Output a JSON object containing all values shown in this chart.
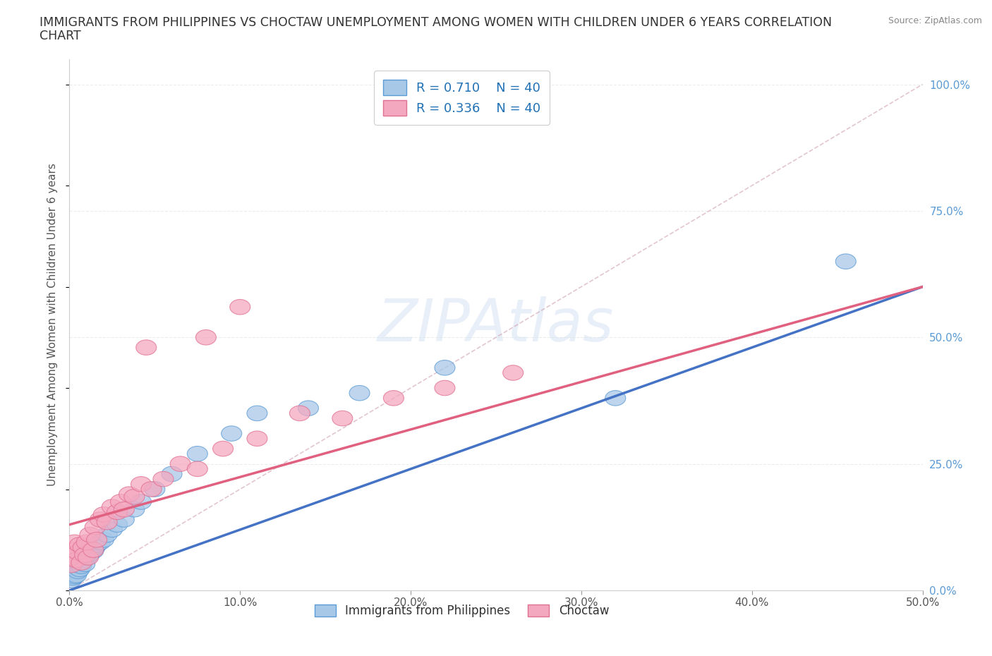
{
  "title_line1": "IMMIGRANTS FROM PHILIPPINES VS CHOCTAW UNEMPLOYMENT AMONG WOMEN WITH CHILDREN UNDER 6 YEARS CORRELATION",
  "title_line2": "CHART",
  "source": "Source: ZipAtlas.com",
  "ylabel": "Unemployment Among Women with Children Under 6 years",
  "xlim": [
    0.0,
    0.5
  ],
  "ylim": [
    0.0,
    1.05
  ],
  "xticks": [
    0.0,
    0.1,
    0.2,
    0.3,
    0.4,
    0.5
  ],
  "xticklabels": [
    "0.0%",
    "10.0%",
    "20.0%",
    "30.0%",
    "40.0%",
    "50.0%"
  ],
  "yticks_right": [
    0.0,
    0.25,
    0.5,
    0.75,
    1.0
  ],
  "yticklabels_right": [
    "0.0%",
    "25.0%",
    "50.0%",
    "75.0%",
    "100.0%"
  ],
  "watermark": "ZIPAtlas",
  "color_blue_fill": "#a8c8e8",
  "color_blue_edge": "#5b9bd5",
  "color_pink_fill": "#f4a8c0",
  "color_pink_edge": "#e07090",
  "color_blue_line": "#4472c4",
  "color_pink_line": "#e06080",
  "color_dash_line": "#d0a0b0",
  "background_color": "#ffffff",
  "grid_color": "#e8e8e8",
  "phil_line_x0": 0.0,
  "phil_line_y0": 0.0,
  "phil_line_x1": 0.5,
  "phil_line_y1": 0.6,
  "choc_line_x0": 0.0,
  "choc_line_y0": 0.13,
  "choc_line_x1": 0.5,
  "choc_line_y1": 0.6,
  "dash_line_x0": 0.0,
  "dash_line_y0": 0.0,
  "dash_line_x1": 0.5,
  "dash_line_y1": 1.0,
  "philippines_x": [
    0.001,
    0.001,
    0.002,
    0.002,
    0.003,
    0.003,
    0.004,
    0.005,
    0.005,
    0.006,
    0.006,
    0.007,
    0.008,
    0.009,
    0.01,
    0.01,
    0.011,
    0.012,
    0.013,
    0.014,
    0.015,
    0.016,
    0.018,
    0.02,
    0.022,
    0.025,
    0.028,
    0.032,
    0.038,
    0.042,
    0.05,
    0.06,
    0.075,
    0.095,
    0.11,
    0.14,
    0.17,
    0.22,
    0.32,
    0.455
  ],
  "philippines_y": [
    0.02,
    0.035,
    0.025,
    0.04,
    0.028,
    0.045,
    0.03,
    0.038,
    0.05,
    0.042,
    0.055,
    0.048,
    0.06,
    0.052,
    0.065,
    0.075,
    0.068,
    0.072,
    0.08,
    0.078,
    0.085,
    0.09,
    0.095,
    0.1,
    0.11,
    0.12,
    0.13,
    0.14,
    0.16,
    0.175,
    0.2,
    0.23,
    0.27,
    0.31,
    0.35,
    0.36,
    0.39,
    0.44,
    0.38,
    0.65
  ],
  "choctaw_x": [
    0.001,
    0.001,
    0.002,
    0.003,
    0.004,
    0.005,
    0.006,
    0.007,
    0.008,
    0.009,
    0.01,
    0.011,
    0.012,
    0.014,
    0.015,
    0.016,
    0.018,
    0.02,
    0.022,
    0.025,
    0.028,
    0.03,
    0.032,
    0.035,
    0.038,
    0.042,
    0.048,
    0.055,
    0.065,
    0.075,
    0.09,
    0.11,
    0.135,
    0.16,
    0.19,
    0.22,
    0.26,
    0.045,
    0.08,
    0.1
  ],
  "choctaw_y": [
    0.05,
    0.065,
    0.08,
    0.095,
    0.06,
    0.075,
    0.09,
    0.055,
    0.085,
    0.07,
    0.095,
    0.065,
    0.11,
    0.08,
    0.125,
    0.1,
    0.14,
    0.15,
    0.135,
    0.165,
    0.155,
    0.175,
    0.16,
    0.19,
    0.185,
    0.21,
    0.2,
    0.22,
    0.25,
    0.24,
    0.28,
    0.3,
    0.35,
    0.34,
    0.38,
    0.4,
    0.43,
    0.48,
    0.5,
    0.56
  ]
}
